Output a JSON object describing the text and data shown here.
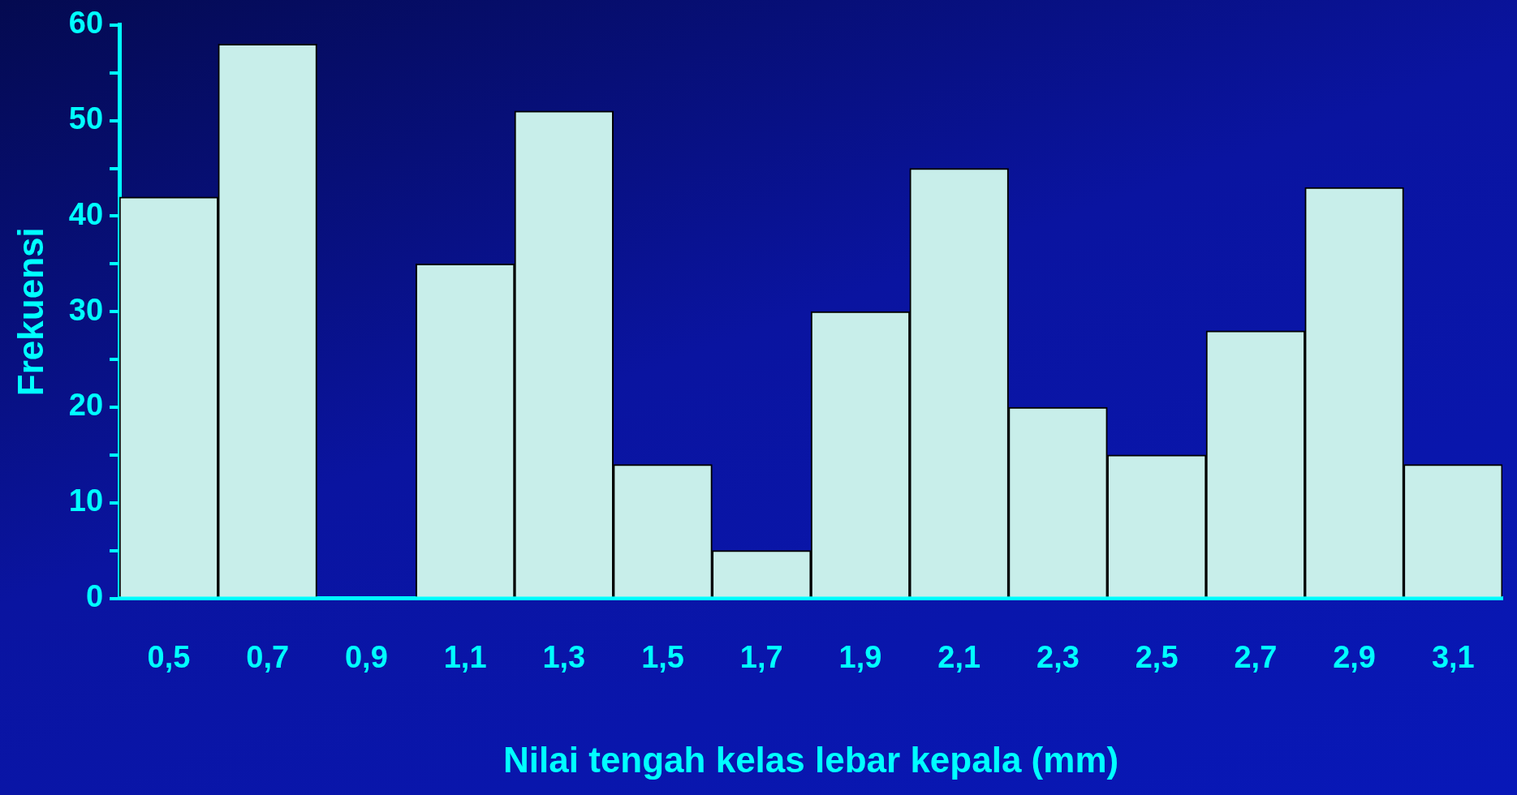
{
  "chart_data": {
    "type": "bar",
    "xlabel": "Nilai tengah kelas lebar kepala (mm)",
    "ylabel": "Frekuensi",
    "categories": [
      "0,5",
      "0,7",
      "0,9",
      "1,1",
      "1,3",
      "1,5",
      "1,7",
      "1,9",
      "2,1",
      "2,3",
      "2,5",
      "2,7",
      "2,9",
      "3,1"
    ],
    "values": [
      42,
      58,
      0,
      35,
      51,
      14,
      5,
      30,
      45,
      20,
      15,
      28,
      43,
      14
    ],
    "color": "#c8eeea",
    "ylim": [
      0,
      60
    ],
    "yticks": [
      0,
      {
        "value": 5,
        "label": null
      },
      10,
      {
        "value": 15,
        "label": null
      },
      20,
      {
        "value": 25,
        "label": null
      },
      30,
      {
        "value": 35,
        "label": null
      },
      40,
      {
        "value": 45,
        "label": null
      },
      50,
      {
        "value": 55,
        "label": null
      },
      60
    ],
    "grid": false,
    "legend": false
  }
}
